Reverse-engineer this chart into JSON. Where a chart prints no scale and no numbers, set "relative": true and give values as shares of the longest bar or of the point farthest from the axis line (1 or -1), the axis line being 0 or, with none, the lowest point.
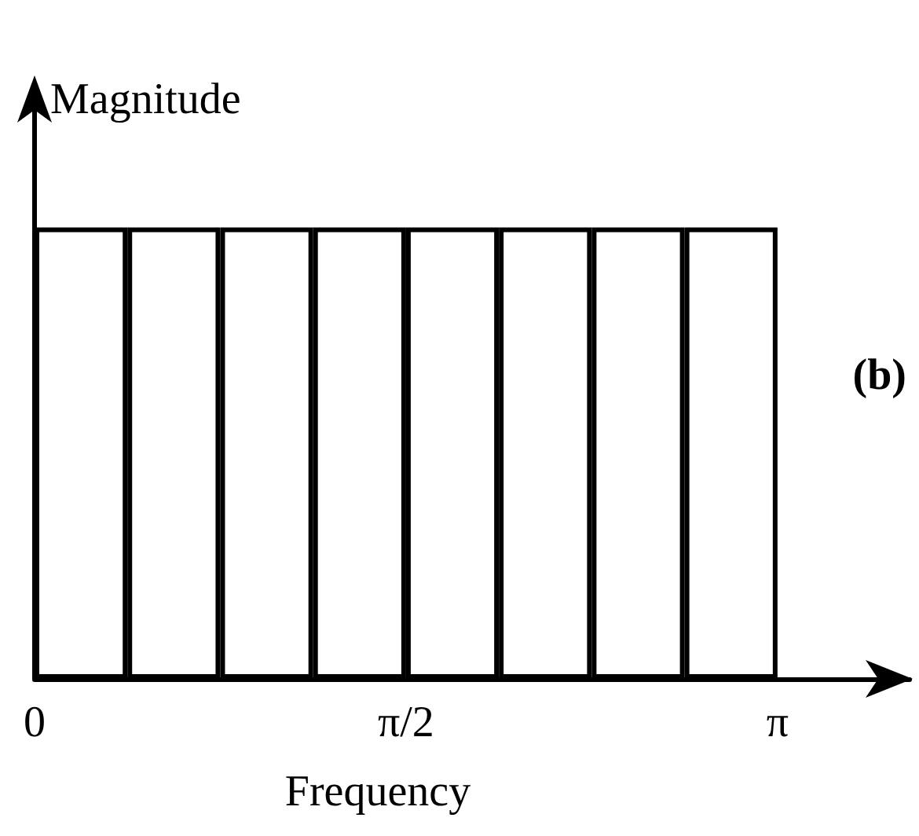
{
  "chart_data": {
    "type": "bar",
    "relative": true,
    "xlabel": "Frequency",
    "ylabel": "Magnitude",
    "annotations": [
      "(b)"
    ],
    "x": [
      0.1963,
      0.589,
      0.9817,
      1.3744,
      1.7671,
      2.1598,
      2.5525,
      2.9452
    ],
    "values": [
      1,
      1,
      1,
      1,
      1,
      1,
      1,
      1
    ],
    "color": "#ffffff",
    "xlim": [
      0,
      3.7
    ],
    "xticks": [
      {
        "value": 0,
        "label": "0"
      },
      {
        "value": 1.5708,
        "label": "π/2"
      },
      {
        "value": 3.1416,
        "label": "π"
      }
    ],
    "grid": false
  }
}
